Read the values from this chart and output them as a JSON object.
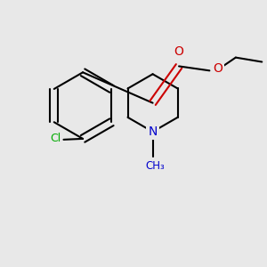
{
  "bg_color": "#e8e8e8",
  "bond_color": "#000000",
  "N_color": "#0000cc",
  "O_color": "#cc0000",
  "Cl_color": "#00aa00",
  "line_width": 1.5,
  "dbo": 0.012,
  "figsize": [
    3.0,
    3.0
  ],
  "dpi": 100,
  "xlim": [
    0,
    3.0
  ],
  "ylim": [
    0,
    3.0
  ]
}
